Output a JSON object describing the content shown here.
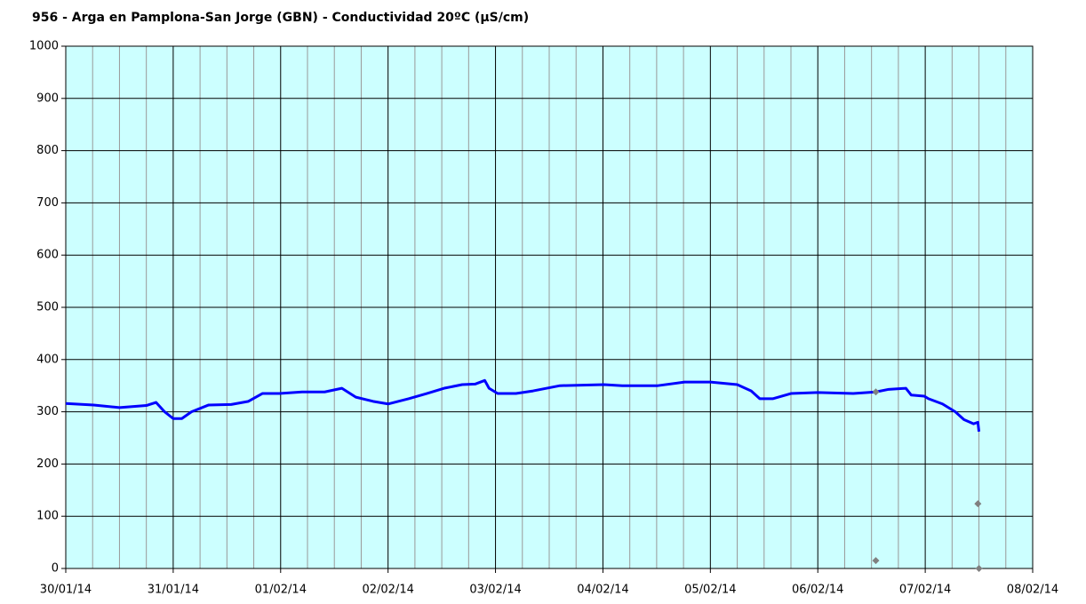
{
  "chart_data": {
    "type": "line",
    "title": "956 - Arga en Pamplona-San Jorge (GBN) - Conductividad 20ºC (µS/cm)",
    "background": "#ccffff",
    "grid": true,
    "xlim": [
      0,
      9
    ],
    "xticks": [
      {
        "value": 0,
        "label": "30/01/14"
      },
      {
        "value": 1,
        "label": "31/01/14"
      },
      {
        "value": 2,
        "label": "01/02/14"
      },
      {
        "value": 3,
        "label": "02/02/14"
      },
      {
        "value": 4,
        "label": "03/02/14"
      },
      {
        "value": 5,
        "label": "04/02/14"
      },
      {
        "value": 6,
        "label": "05/02/14"
      },
      {
        "value": 7,
        "label": "06/02/14"
      },
      {
        "value": 8,
        "label": "07/02/14"
      },
      {
        "value": 9,
        "label": "08/02/14"
      }
    ],
    "x_minor_ticks": [
      0.25,
      0.5,
      0.75,
      1.25,
      1.5,
      1.75,
      2.25,
      2.5,
      2.75,
      3.25,
      3.5,
      3.75,
      4.25,
      4.5,
      4.75,
      5.25,
      5.5,
      5.75,
      6.25,
      6.5,
      6.75,
      7.25,
      7.5,
      7.75,
      8.25,
      8.5,
      8.75
    ],
    "ylim": [
      0,
      1000
    ],
    "yticks": [
      0,
      100,
      200,
      300,
      400,
      500,
      600,
      700,
      800,
      900,
      1000
    ],
    "series": [
      {
        "color": "#0000ff",
        "style": "line",
        "x": [
          0,
          0.26,
          0.5,
          0.75,
          0.84,
          0.92,
          1.0,
          1.08,
          1.17,
          1.33,
          1.54,
          1.7,
          1.83,
          1.99,
          2.2,
          2.41,
          2.57,
          2.7,
          2.86,
          3.0,
          3.19,
          3.36,
          3.52,
          3.69,
          3.81,
          3.9,
          3.94,
          4.02,
          4.19,
          4.35,
          4.6,
          5.01,
          5.18,
          5.51,
          5.76,
          6.0,
          6.25,
          6.38,
          6.46,
          6.58,
          6.75,
          7.0,
          7.33,
          7.54,
          7.66,
          7.82,
          7.87,
          7.99,
          8.03,
          8.16,
          8.28,
          8.36,
          8.45,
          8.49,
          8.5
        ],
        "values": [
          316,
          313,
          308,
          312,
          318,
          300,
          287,
          287,
          300,
          313,
          314,
          320,
          335,
          335,
          338,
          338,
          345,
          328,
          320,
          315,
          325,
          335,
          345,
          352,
          353,
          360,
          345,
          335,
          335,
          340,
          350,
          352,
          350,
          350,
          357,
          357,
          352,
          340,
          325,
          325,
          335,
          337,
          335,
          338,
          343,
          345,
          332,
          330,
          325,
          315,
          300,
          285,
          277,
          280,
          262
        ]
      },
      {
        "color": "#808080",
        "style": "points",
        "x": [
          7.54,
          7.54,
          8.49,
          8.5
        ],
        "values": [
          338,
          15,
          124,
          0
        ]
      }
    ]
  }
}
